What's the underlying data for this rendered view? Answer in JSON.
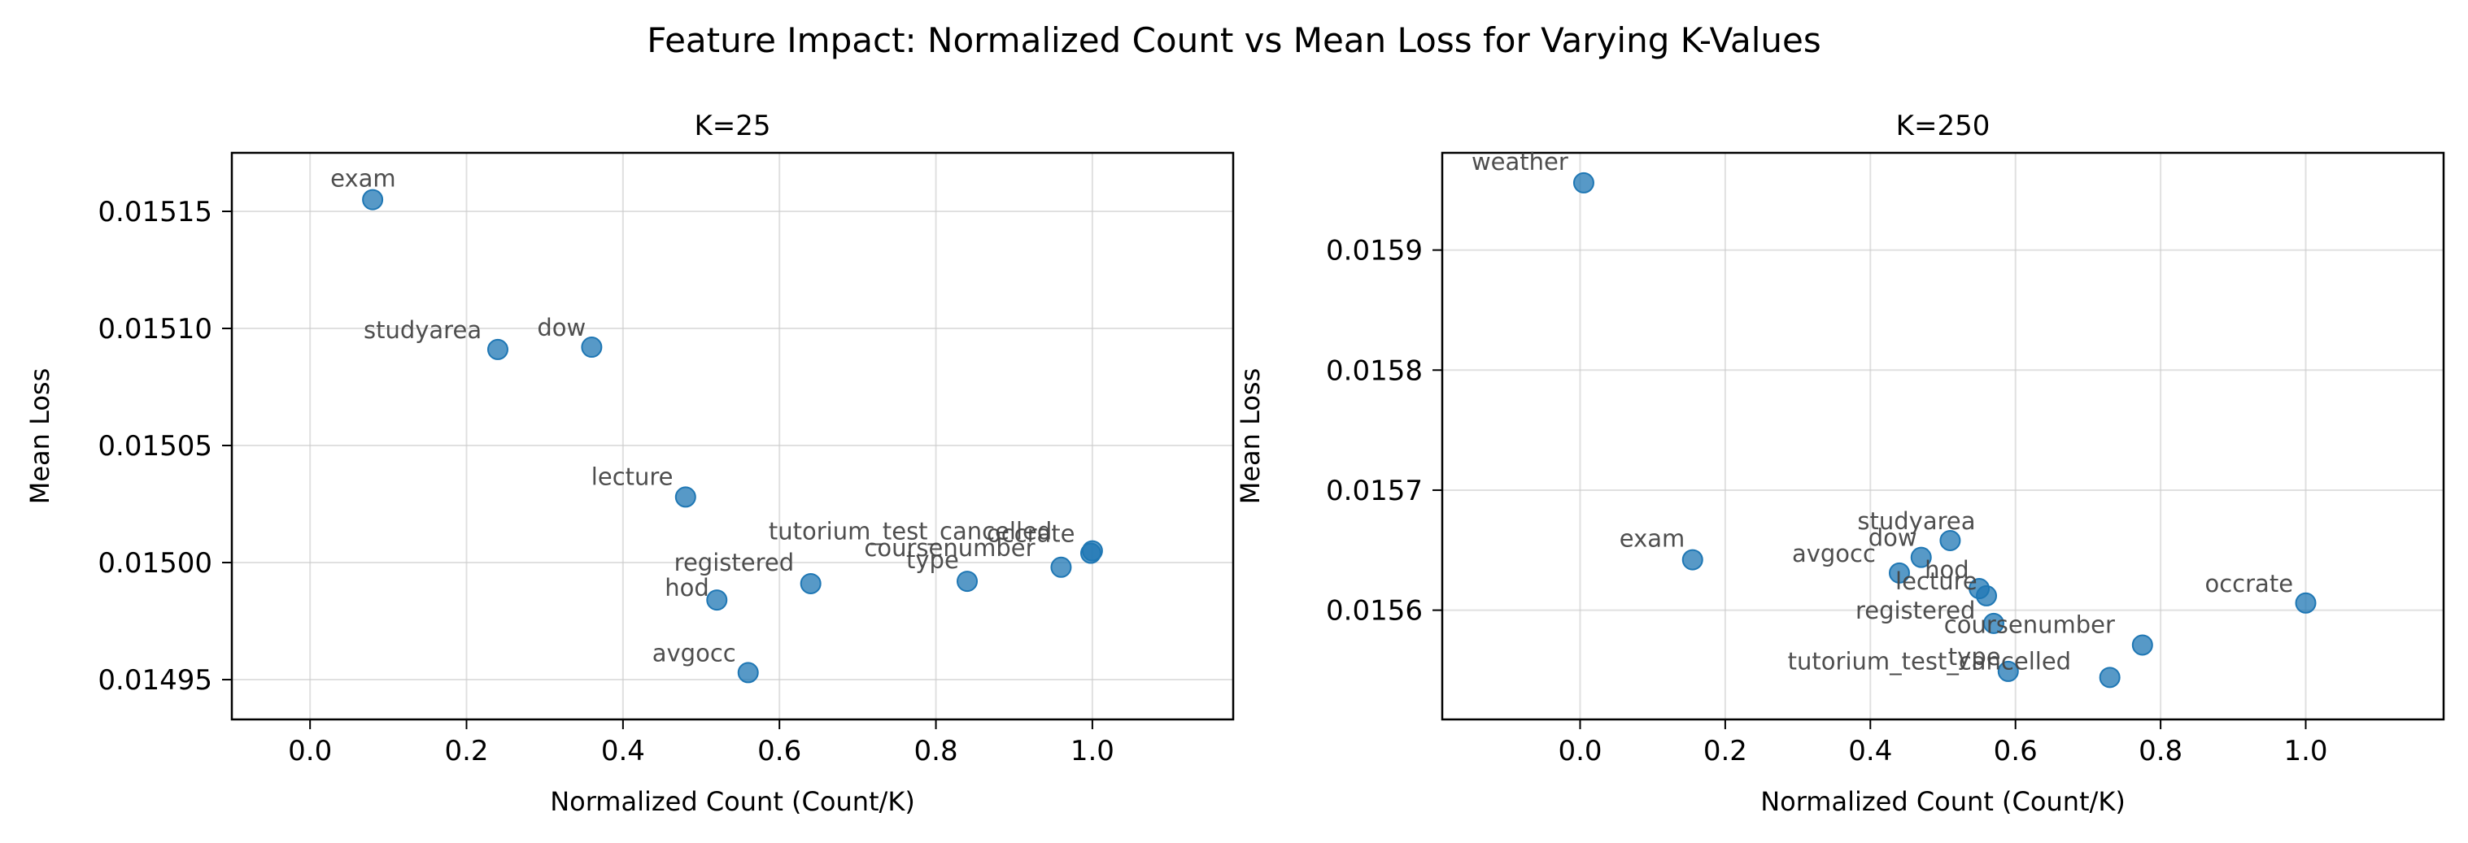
{
  "title": "Feature Impact: Normalized Count vs Mean Loss for Varying K-Values",
  "colors": {
    "marker": "#1f77b4",
    "grid": "#cccccc",
    "label": "#444444"
  },
  "chart_data": [
    {
      "type": "scatter",
      "title": "K=25",
      "xlabel": "Normalized Count (Count/K)",
      "ylabel": "Mean Loss",
      "xlim": [
        -0.1,
        1.18
      ],
      "ylim": [
        0.014933,
        0.015175
      ],
      "xticks": [
        "0.0",
        "0.2",
        "0.4",
        "0.6",
        "0.8",
        "1.0"
      ],
      "yticks": [
        "0.01495",
        "0.01500",
        "0.01505",
        "0.01510",
        "0.01515"
      ],
      "grid": true,
      "points": [
        {
          "label": "exam",
          "x": 0.08,
          "y": 0.015155
        },
        {
          "label": "studyarea",
          "x": 0.24,
          "y": 0.015091
        },
        {
          "label": "dow",
          "x": 0.36,
          "y": 0.015092
        },
        {
          "label": "lecture",
          "x": 0.48,
          "y": 0.015028
        },
        {
          "label": "registered",
          "x": 0.64,
          "y": 0.014991
        },
        {
          "label": "hod",
          "x": 0.52,
          "y": 0.014984
        },
        {
          "label": "avgocc",
          "x": 0.56,
          "y": 0.014953
        },
        {
          "label": "tutorium_test_cancelled",
          "x": 1.0,
          "y": 0.015005
        },
        {
          "label": "occrate",
          "x": 0.998,
          "y": 0.015004
        },
        {
          "label": "coursenumber",
          "x": 0.96,
          "y": 0.014998
        },
        {
          "label": "type",
          "x": 0.84,
          "y": 0.014992
        }
      ]
    },
    {
      "type": "scatter",
      "title": "K=250",
      "xlabel": "Normalized Count (Count/K)",
      "ylabel": "Mean Loss",
      "xlim": [
        -0.19,
        1.19
      ],
      "ylim": [
        0.015509,
        0.015981
      ],
      "xticks": [
        "0.0",
        "0.2",
        "0.4",
        "0.6",
        "0.8",
        "1.0"
      ],
      "yticks": [
        "0.0156",
        "0.0157",
        "0.0158",
        "0.0159"
      ],
      "grid": true,
      "points": [
        {
          "label": "weather",
          "x": 0.005,
          "y": 0.015956
        },
        {
          "label": "exam",
          "x": 0.155,
          "y": 0.015642
        },
        {
          "label": "studyarea",
          "x": 0.51,
          "y": 0.015658
        },
        {
          "label": "dow",
          "x": 0.47,
          "y": 0.015644
        },
        {
          "label": "avgocc",
          "x": 0.44,
          "y": 0.015631
        },
        {
          "label": "hod",
          "x": 0.55,
          "y": 0.015618
        },
        {
          "label": "lecture",
          "x": 0.56,
          "y": 0.015612
        },
        {
          "label": "registered",
          "x": 0.57,
          "y": 0.015589
        },
        {
          "label": "coursenumber",
          "x": 0.775,
          "y": 0.015571
        },
        {
          "label": "type",
          "x": 0.59,
          "y": 0.015549
        },
        {
          "label": "tutorium_test_cancelled",
          "x": 0.73,
          "y": 0.015544
        },
        {
          "label": "occrate",
          "x": 1.0,
          "y": 0.015606
        }
      ]
    }
  ]
}
